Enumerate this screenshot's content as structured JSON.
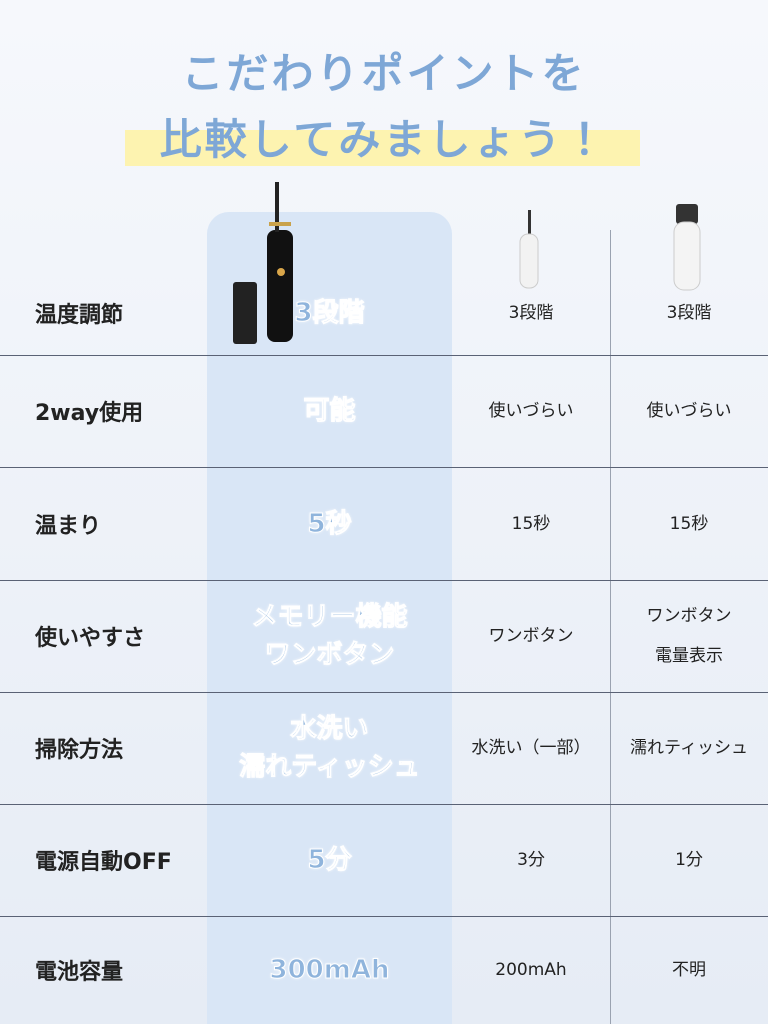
{
  "header": {
    "title": [
      "こだわりポイントを",
      "比較してみましょう！"
    ]
  },
  "table": {
    "rows": [
      [
        [
          "温度調節"
        ],
        [
          "3段階"
        ],
        [
          "3段階"
        ],
        [
          "3段階"
        ]
      ],
      [
        [
          "2way使用"
        ],
        [
          "可能"
        ],
        [
          "使いづらい"
        ],
        [
          "使いづらい"
        ]
      ],
      [
        [
          "温まり"
        ],
        [
          "5秒"
        ],
        [
          "15秒"
        ],
        [
          "15秒"
        ]
      ],
      [
        [
          "使いやすさ"
        ],
        [
          "メモリー機能",
          "ワンボタン"
        ],
        [
          "ワンボタン"
        ],
        [
          "ワンボタン",
          "電量表示"
        ]
      ],
      [
        [
          "掃除方法"
        ],
        [
          "水洗い",
          "濡れティッシュ"
        ],
        [
          "水洗い（一部）"
        ],
        [
          "濡れティッシュ"
        ]
      ],
      [
        [
          "電源自動OFF"
        ],
        [
          "5分"
        ],
        [
          "3分"
        ],
        [
          "1分"
        ]
      ],
      [
        [
          "電池容量"
        ],
        [
          "300mAh"
        ],
        [
          "200mAh"
        ],
        [
          "不明"
        ]
      ]
    ]
  }
}
